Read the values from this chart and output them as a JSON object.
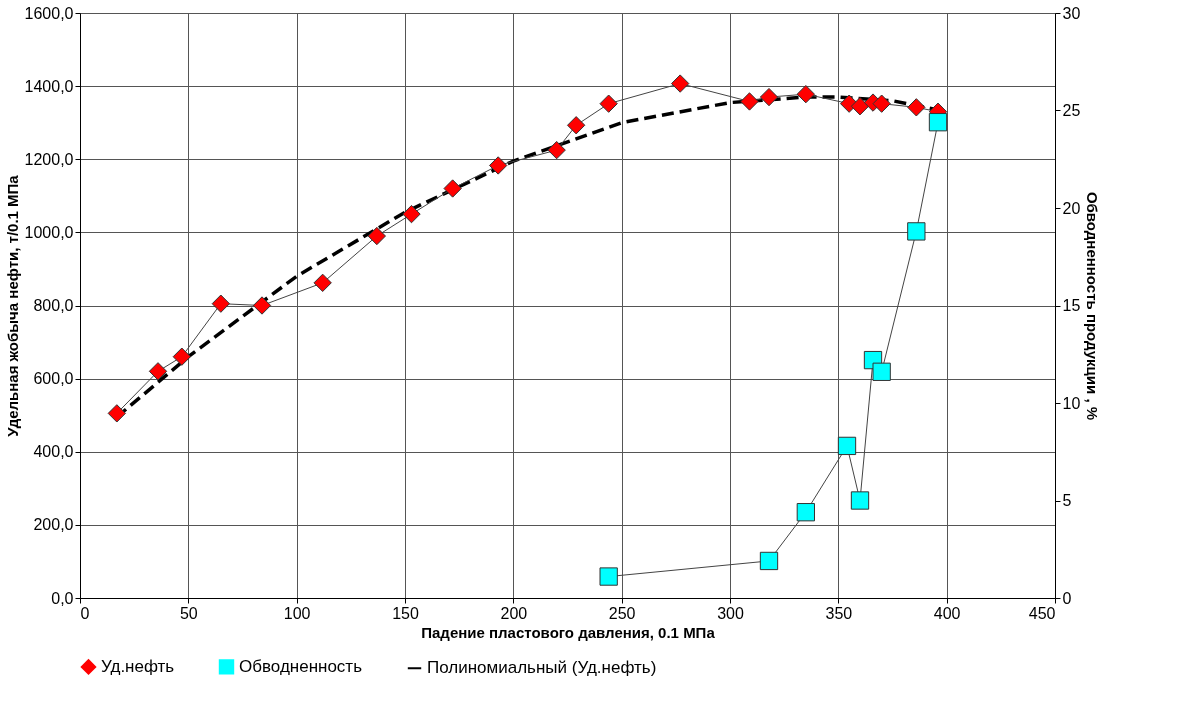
{
  "chart_data": {
    "type": "line",
    "xlabel": "Падение пластового давления, 0.1 МПа",
    "ylabel": "Удельная жобыча нефти, т/0.1 МПа",
    "y2label": "Обводненность продукции , %",
    "xlim": [
      0,
      450
    ],
    "xticks": [
      0,
      50,
      100,
      150,
      200,
      250,
      300,
      350,
      400,
      450
    ],
    "ylim": [
      0,
      1600
    ],
    "yticks": [
      {
        "value": 0,
        "label": "0,0"
      },
      {
        "value": 200,
        "label": "200,0"
      },
      {
        "value": 400,
        "label": "400,0"
      },
      {
        "value": 600,
        "label": "600,0"
      },
      {
        "value": 800,
        "label": "800,0"
      },
      {
        "value": 1000,
        "label": "1000,0"
      },
      {
        "value": 1200,
        "label": "1200,0"
      },
      {
        "value": 1400,
        "label": "1400,0"
      },
      {
        "value": 1600,
        "label": "1600,0"
      }
    ],
    "y2lim": [
      0,
      30
    ],
    "y2ticks": [
      0,
      5,
      10,
      15,
      20,
      25,
      30
    ],
    "grid": true,
    "legend": "bottom",
    "series": [
      {
        "name": "Уд.нефть",
        "color": "#ff0000",
        "marker": "diamond",
        "line_style": "solid",
        "x": [
          17,
          36,
          47,
          65,
          84,
          112,
          137,
          153,
          172,
          193,
          220,
          229,
          244,
          277,
          309,
          318,
          335,
          355,
          360,
          366,
          370,
          386,
          396
        ],
        "values": [
          505,
          620,
          660,
          805,
          800,
          862,
          990,
          1050,
          1120,
          1183,
          1225,
          1293,
          1352,
          1407,
          1358,
          1370,
          1378,
          1352,
          1345,
          1355,
          1352,
          1342,
          1330
        ]
      },
      {
        "name": "Обводненность",
        "color": "#00ffff",
        "marker": "square",
        "line_style": "solid",
        "axis": "y2",
        "x": [
          244,
          318,
          335,
          354,
          360,
          366,
          370,
          386,
          396
        ],
        "values": [
          1.1,
          1.9,
          4.4,
          7.8,
          5.0,
          12.2,
          11.6,
          18.8,
          24.4
        ]
      },
      {
        "name": "Полиномиальный (Уд.нефть)",
        "color": "#000000",
        "marker": "none",
        "line_style": "dashed",
        "x": [
          17,
          50,
          100,
          150,
          200,
          250,
          300,
          335,
          350,
          375,
          400
        ],
        "values": [
          495,
          660,
          880,
          1055,
          1195,
          1300,
          1355,
          1370,
          1370,
          1360,
          1330
        ]
      }
    ]
  }
}
